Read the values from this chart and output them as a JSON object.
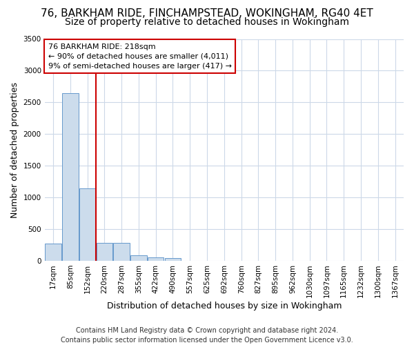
{
  "title_line1": "76, BARKHAM RIDE, FINCHAMPSTEAD, WOKINGHAM, RG40 4ET",
  "title_line2": "Size of property relative to detached houses in Wokingham",
  "xlabel": "Distribution of detached houses by size in Wokingham",
  "ylabel": "Number of detached properties",
  "footer_line1": "Contains HM Land Registry data © Crown copyright and database right 2024.",
  "footer_line2": "Contains public sector information licensed under the Open Government Licence v3.0.",
  "bar_labels": [
    "17sqm",
    "85sqm",
    "152sqm",
    "220sqm",
    "287sqm",
    "355sqm",
    "422sqm",
    "490sqm",
    "557sqm",
    "625sqm",
    "692sqm",
    "760sqm",
    "827sqm",
    "895sqm",
    "962sqm",
    "1030sqm",
    "1097sqm",
    "1165sqm",
    "1232sqm",
    "1300sqm",
    "1367sqm"
  ],
  "bar_values": [
    270,
    2650,
    1140,
    280,
    280,
    90,
    50,
    40,
    0,
    0,
    0,
    0,
    0,
    0,
    0,
    0,
    0,
    0,
    0,
    0,
    0
  ],
  "bar_color": "#ccdcec",
  "bar_edgecolor": "#6699cc",
  "grid_color": "#ccd8e8",
  "annotation_text": "76 BARKHAM RIDE: 218sqm\n← 90% of detached houses are smaller (4,011)\n9% of semi-detached houses are larger (417) →",
  "annotation_box_facecolor": "#ffffff",
  "annotation_box_edgecolor": "#cc0000",
  "vline_color": "#cc0000",
  "vline_pos": 2.5,
  "ylim": [
    0,
    3500
  ],
  "yticks": [
    0,
    500,
    1000,
    1500,
    2000,
    2500,
    3000,
    3500
  ],
  "background_color": "#ffffff",
  "title_fontsize": 11,
  "subtitle_fontsize": 10,
  "ylabel_fontsize": 9,
  "xlabel_fontsize": 9,
  "tick_fontsize": 7.5,
  "annotation_fontsize": 8,
  "footer_fontsize": 7
}
